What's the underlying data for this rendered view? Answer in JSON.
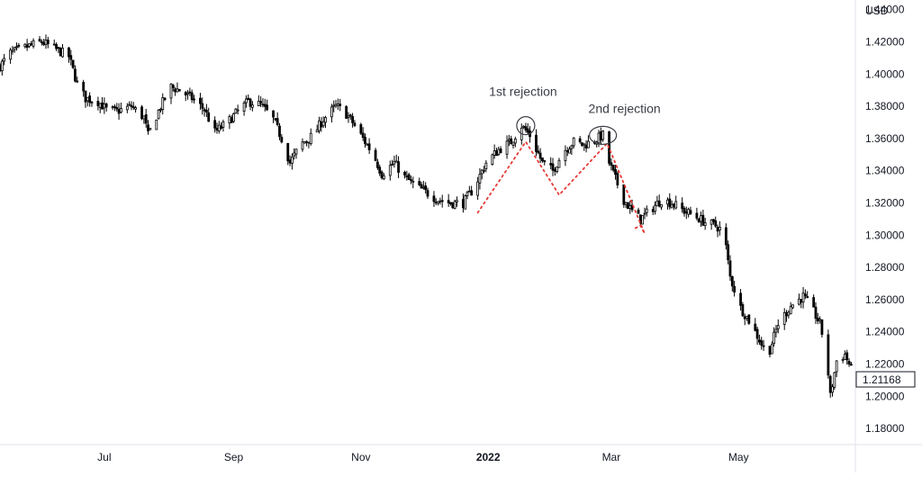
{
  "chart_data": {
    "type": "candlestick",
    "currency_label": "USD",
    "last_price": "1.21168",
    "ylim": [
      1.17,
      1.446
    ],
    "y_ticks": [
      "1.18000",
      "1.20000",
      "1.22000",
      "1.24000",
      "1.26000",
      "1.28000",
      "1.30000",
      "1.32000",
      "1.34000",
      "1.36000",
      "1.38000",
      "1.40000",
      "1.42000",
      "1.44000"
    ],
    "x_ticks": [
      {
        "label": "Jul",
        "bold": false,
        "date": "2021-07-01"
      },
      {
        "label": "Sep",
        "bold": false,
        "date": "2021-09-01"
      },
      {
        "label": "Nov",
        "bold": false,
        "date": "2021-11-01"
      },
      {
        "label": "2022",
        "bold": true,
        "date": "2022-01-01"
      },
      {
        "label": "Mar",
        "bold": false,
        "date": "2022-03-01"
      },
      {
        "label": "May",
        "bold": false,
        "date": "2022-05-01"
      }
    ],
    "x_range": [
      "2021-05-12",
      "2022-06-26"
    ],
    "close_path": [
      [
        "2021-05-12",
        1.405
      ],
      [
        "2021-05-17",
        1.413
      ],
      [
        "2021-05-25",
        1.417
      ],
      [
        "2021-06-01",
        1.42
      ],
      [
        "2021-06-07",
        1.416
      ],
      [
        "2021-06-14",
        1.411
      ],
      [
        "2021-06-18",
        1.394
      ],
      [
        "2021-06-22",
        1.385
      ],
      [
        "2021-06-28",
        1.383
      ],
      [
        "2021-07-02",
        1.378
      ],
      [
        "2021-07-07",
        1.377
      ],
      [
        "2021-07-14",
        1.38
      ],
      [
        "2021-07-20",
        1.373
      ],
      [
        "2021-07-22",
        1.362
      ],
      [
        "2021-07-28",
        1.38
      ],
      [
        "2021-08-02",
        1.392
      ],
      [
        "2021-08-06",
        1.39
      ],
      [
        "2021-08-12",
        1.385
      ],
      [
        "2021-08-18",
        1.378
      ],
      [
        "2021-08-23",
        1.364
      ],
      [
        "2021-08-29",
        1.37
      ],
      [
        "2021-09-03",
        1.377
      ],
      [
        "2021-09-08",
        1.383
      ],
      [
        "2021-09-14",
        1.381
      ],
      [
        "2021-09-20",
        1.372
      ],
      [
        "2021-09-24",
        1.36
      ],
      [
        "2021-09-28",
        1.345
      ],
      [
        "2021-10-03",
        1.356
      ],
      [
        "2021-10-09",
        1.362
      ],
      [
        "2021-10-14",
        1.372
      ],
      [
        "2021-10-20",
        1.38
      ],
      [
        "2021-10-24",
        1.377
      ],
      [
        "2021-10-28",
        1.37
      ],
      [
        "2021-11-02",
        1.36
      ],
      [
        "2021-11-07",
        1.35
      ],
      [
        "2021-11-11",
        1.338
      ],
      [
        "2021-11-17",
        1.345
      ],
      [
        "2021-11-22",
        1.336
      ],
      [
        "2021-11-28",
        1.33
      ],
      [
        "2021-12-03",
        1.326
      ],
      [
        "2021-12-08",
        1.322
      ],
      [
        "2021-12-14",
        1.32
      ],
      [
        "2021-12-20",
        1.32
      ],
      [
        "2021-12-25",
        1.329
      ],
      [
        "2021-12-31",
        1.345
      ],
      [
        "2022-01-06",
        1.353
      ],
      [
        "2022-01-12",
        1.358
      ],
      [
        "2022-01-17",
        1.368
      ],
      [
        "2022-01-21",
        1.362
      ],
      [
        "2022-01-27",
        1.345
      ],
      [
        "2022-02-01",
        1.34
      ],
      [
        "2022-02-06",
        1.352
      ],
      [
        "2022-02-11",
        1.358
      ],
      [
        "2022-02-16",
        1.356
      ],
      [
        "2022-02-21",
        1.359
      ],
      [
        "2022-02-25",
        1.362
      ],
      [
        "2022-02-28",
        1.345
      ],
      [
        "2022-03-03",
        1.335
      ],
      [
        "2022-03-07",
        1.322
      ],
      [
        "2022-03-12",
        1.313
      ],
      [
        "2022-03-15",
        1.31
      ],
      [
        "2022-03-20",
        1.316
      ],
      [
        "2022-03-25",
        1.322
      ],
      [
        "2022-03-30",
        1.32
      ],
      [
        "2022-04-05",
        1.315
      ],
      [
        "2022-04-10",
        1.312
      ],
      [
        "2022-04-15",
        1.308
      ],
      [
        "2022-04-20",
        1.306
      ],
      [
        "2022-04-24",
        1.302
      ],
      [
        "2022-04-27",
        1.274
      ],
      [
        "2022-05-02",
        1.255
      ],
      [
        "2022-05-07",
        1.245
      ],
      [
        "2022-05-11",
        1.235
      ],
      [
        "2022-05-15",
        1.225
      ],
      [
        "2022-05-20",
        1.245
      ],
      [
        "2022-05-26",
        1.256
      ],
      [
        "2022-06-01",
        1.262
      ],
      [
        "2022-06-05",
        1.255
      ],
      [
        "2022-06-09",
        1.245
      ],
      [
        "2022-06-12",
        1.228
      ],
      [
        "2022-06-14",
        1.2
      ],
      [
        "2022-06-17",
        1.222
      ],
      [
        "2022-06-21",
        1.226
      ],
      [
        "2022-06-26",
        1.211
      ]
    ],
    "pattern_path": [
      [
        "2021-12-27",
        1.314
      ],
      [
        "2022-01-19",
        1.358
      ],
      [
        "2022-02-04",
        1.325
      ],
      [
        "2022-02-27",
        1.357
      ],
      [
        "2022-03-17",
        1.301
      ],
      [
        "2022-03-15",
        1.306
      ],
      [
        "2022-03-12",
        1.304
      ]
    ],
    "pattern_color": "#e53935",
    "annotations": [
      {
        "text": "1st rejection",
        "date": "2022-01-19",
        "price": 1.368
      },
      {
        "text": "2nd rejection",
        "date": "2022-02-25",
        "price": 1.362
      }
    ],
    "candle_color": "#000000",
    "candle_up_fill": "#ffffff",
    "grid": false
  }
}
